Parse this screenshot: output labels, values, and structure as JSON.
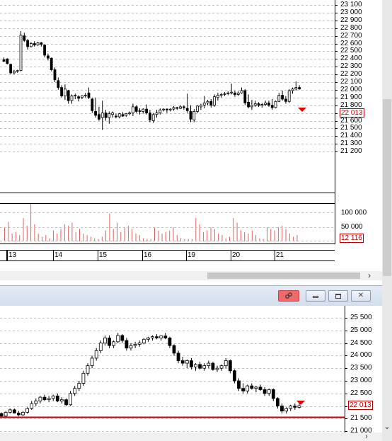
{
  "top_chart": {
    "price_axis_labels": [
      "23 100",
      "23 000",
      "22 900",
      "22 800",
      "22 700",
      "22 600",
      "22 500",
      "22 400",
      "22 300",
      "22 200",
      "22 100",
      "22 000",
      "21 900",
      "21 800",
      "21 700",
      "21 600",
      "21 500",
      "21 400",
      "21 300",
      "21 200"
    ],
    "last_price": "22 013",
    "volume_axis_labels": [
      "100 000",
      "50 000"
    ],
    "last_volume": "12 116",
    "date_labels": [
      "13",
      "14",
      "15",
      "16",
      "19",
      "20",
      "21"
    ]
  },
  "bottom_chart": {
    "price_axis_labels": [
      "25 500",
      "25 000",
      "24 500",
      "24 000",
      "23 500",
      "23 000",
      "22 500",
      "22 000",
      "21 500",
      "21 000"
    ],
    "last_price": "22 013"
  },
  "window_buttons": {
    "link_icon": "link-icon",
    "minimize_icon": "minimize-icon",
    "restore_icon": "restore-icon",
    "close_icon": "close-icon"
  },
  "scrollbar": {
    "right_arrow": "›",
    "down_arrow": "⌄"
  },
  "colors": {
    "up": "#ffffff",
    "down": "#000000",
    "volume": "#e06060",
    "last_price": "#c00000",
    "grid": "#c0c0c0"
  }
}
